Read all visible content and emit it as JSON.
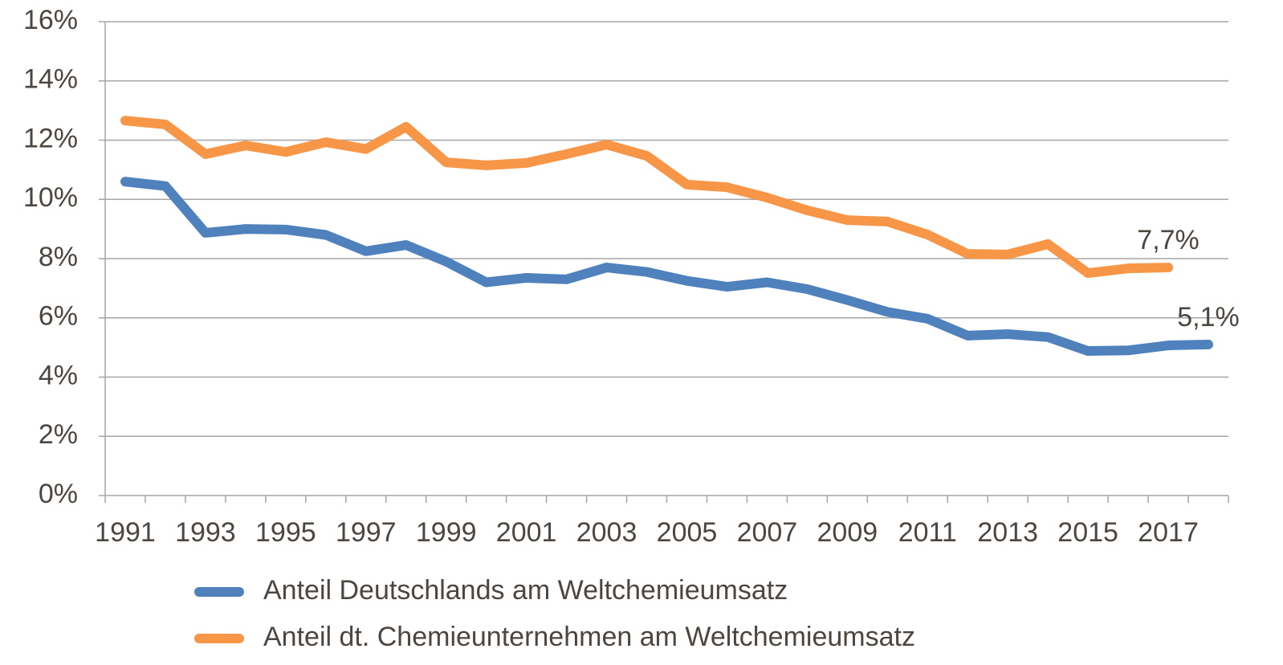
{
  "chart_data": {
    "type": "line",
    "categories": [
      "1991",
      null,
      "1993",
      null,
      "1995",
      null,
      "1997",
      null,
      "1999",
      null,
      "2001",
      null,
      "2003",
      null,
      "2005",
      null,
      "2007",
      null,
      "2009",
      null,
      "2011",
      null,
      "2013",
      null,
      "2015",
      null,
      "2017",
      null
    ],
    "series": [
      {
        "name": "Anteil Deutschlands am Weltchemieumsatz",
        "color": "#4f81bd",
        "values": [
          10.6,
          10.45,
          8.87,
          9.0,
          8.98,
          8.8,
          8.25,
          8.46,
          7.9,
          7.2,
          7.35,
          7.3,
          7.7,
          7.55,
          7.25,
          7.05,
          7.2,
          6.97,
          6.6,
          6.2,
          5.97,
          5.4,
          5.45,
          5.35,
          4.88,
          4.9,
          5.07,
          5.1
        ],
        "value_labels": [
          null,
          null,
          null,
          null,
          null,
          null,
          null,
          null,
          null,
          null,
          null,
          null,
          null,
          null,
          null,
          null,
          null,
          null,
          null,
          null,
          null,
          null,
          null,
          null,
          null,
          null,
          null,
          "5,1%"
        ]
      },
      {
        "name": "Anteil dt. Chemieunternehmen am Weltchemieumsatz",
        "color": "#f79646",
        "values": [
          12.66,
          12.53,
          11.53,
          11.82,
          11.6,
          11.93,
          11.7,
          12.45,
          11.25,
          11.15,
          11.23,
          11.53,
          11.85,
          11.47,
          10.5,
          10.41,
          10.06,
          9.63,
          9.3,
          9.25,
          8.81,
          8.16,
          8.14,
          8.49,
          7.51,
          7.67,
          7.7,
          null
        ],
        "value_labels": [
          null,
          null,
          null,
          null,
          null,
          null,
          null,
          null,
          null,
          null,
          null,
          null,
          null,
          null,
          null,
          null,
          null,
          null,
          null,
          null,
          null,
          null,
          null,
          null,
          null,
          null,
          "7,7%",
          null
        ]
      }
    ],
    "ylim": [
      0,
      16
    ],
    "yticks": [
      {
        "value": 0,
        "label": "0%"
      },
      {
        "value": 2,
        "label": "2%"
      },
      {
        "value": 4,
        "label": "4%"
      },
      {
        "value": 6,
        "label": "6%"
      },
      {
        "value": 8,
        "label": "8%"
      },
      {
        "value": 10,
        "label": "10%"
      },
      {
        "value": 12,
        "label": "12%"
      },
      {
        "value": 14,
        "label": "14%"
      },
      {
        "value": 16,
        "label": "16%"
      }
    ],
    "grid": true,
    "legend": "bottom"
  }
}
